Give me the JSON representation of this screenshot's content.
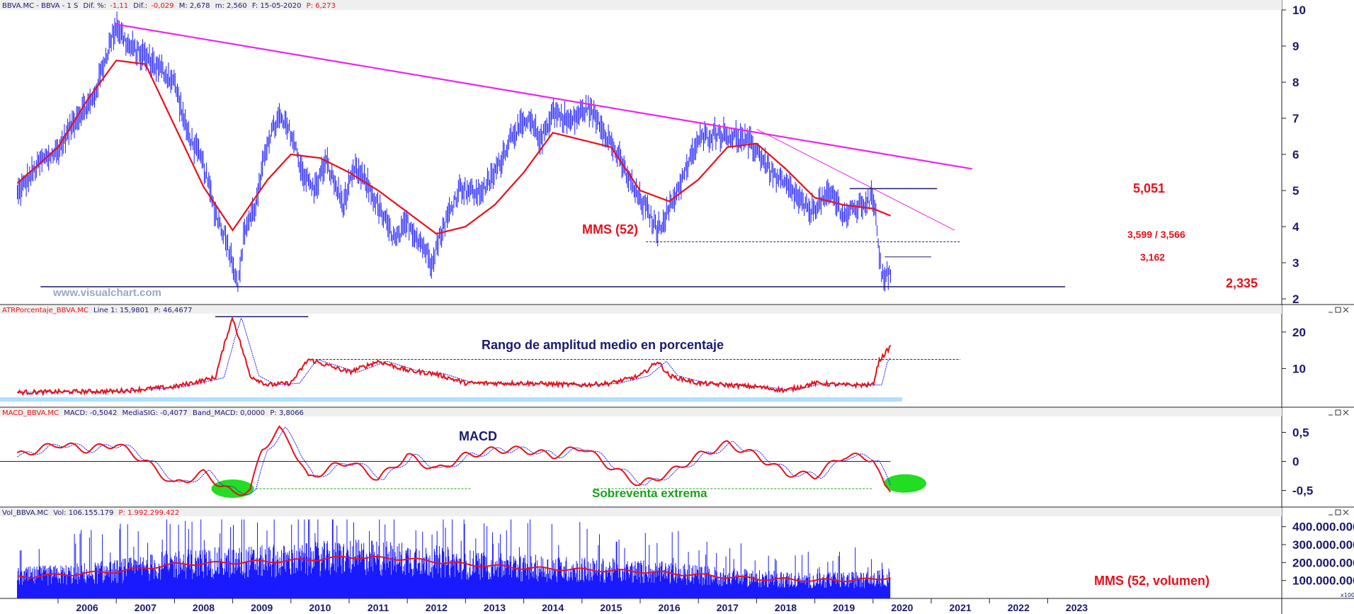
{
  "chart_data": [
    {
      "type": "line",
      "panel": "price",
      "header": {
        "symbol": "BBVA.MC - BBVA - 1 S",
        "dif_label": "Dif. %:",
        "dif_pct": "-1,11",
        "dif_abs_label": "Dif.:",
        "dif_abs": "-0,029",
        "max": "M: 2,678",
        "min": "m: 2,560",
        "date": "F: 15-05-2020",
        "price": "P: 6,273"
      },
      "ylim": [
        2,
        10
      ],
      "yticks": [
        "10",
        "9",
        "8",
        "7",
        "6",
        "5",
        "4",
        "3",
        "2"
      ],
      "series": [
        {
          "name": "MMS (52)",
          "color": "#e8101a",
          "x": [
            2005.3,
            2006.0,
            2006.5,
            2007.0,
            2007.5,
            2008.0,
            2008.5,
            2009.0,
            2009.3,
            2009.6,
            2010.0,
            2010.5,
            2011.0,
            2011.5,
            2012.0,
            2012.5,
            2013.0,
            2013.5,
            2014.0,
            2014.5,
            2015.0,
            2015.5,
            2016.0,
            2016.5,
            2017.0,
            2017.5,
            2018.0,
            2018.5,
            2019.0,
            2019.5,
            2020.0,
            2020.3
          ],
          "values": [
            5.2,
            6.2,
            7.5,
            8.6,
            8.5,
            6.8,
            5.1,
            3.9,
            4.6,
            5.3,
            6.0,
            5.9,
            5.5,
            5.0,
            4.4,
            3.8,
            4.0,
            4.6,
            5.5,
            6.6,
            6.4,
            6.2,
            5.0,
            4.7,
            5.3,
            6.2,
            6.3,
            5.6,
            4.8,
            4.6,
            4.5,
            4.3
          ]
        }
      ],
      "annotations": [
        {
          "text": "MMS (52)",
          "color": "#e8101a"
        },
        {
          "text": "5,051",
          "color": "#e8101a"
        },
        {
          "text": "3,599 / 3,566",
          "color": "#e8101a"
        },
        {
          "text": "3,162",
          "color": "#e8101a"
        },
        {
          "text": "2,335",
          "color": "#e8101a"
        }
      ],
      "levels": [
        5.051,
        3.599,
        3.162,
        2.335
      ],
      "watermark": "www.visualchart.com"
    },
    {
      "type": "line",
      "panel": "atr",
      "header": {
        "name": "ATRPorcentaje_BBVA.MC",
        "line": "Line 1: 15,9801",
        "p": "P: 46,4677"
      },
      "ylim": [
        0,
        25
      ],
      "yticks": [
        "20",
        "10"
      ],
      "series": [
        {
          "color": "#e8101a",
          "x": [
            2005.3,
            2007.0,
            2008.0,
            2008.7,
            2008.9,
            2009.0,
            2009.3,
            2009.6,
            2010.0,
            2010.3,
            2011.0,
            2011.5,
            2012.0,
            2012.5,
            2013.0,
            2014.0,
            2015.0,
            2015.5,
            2016.0,
            2016.3,
            2016.5,
            2017.0,
            2017.5,
            2018.0,
            2018.5,
            2019.0,
            2019.5,
            2020.0,
            2020.1,
            2020.2,
            2020.3
          ],
          "values": [
            3.5,
            3.8,
            5.0,
            7.5,
            19.0,
            24.0,
            8.0,
            5.5,
            6.0,
            12.5,
            9.0,
            12.0,
            9.5,
            8.5,
            6.0,
            6.0,
            5.5,
            6.0,
            8.0,
            12.0,
            8.0,
            6.0,
            5.5,
            5.0,
            4.0,
            6.0,
            5.5,
            5.5,
            12.0,
            14.0,
            16.0
          ]
        }
      ],
      "annotations": [
        {
          "text": "Rango de amplitud medio en porcentaje",
          "color": "#1a1a6e"
        }
      ]
    },
    {
      "type": "line",
      "panel": "macd",
      "header": {
        "name": "MACD_BBVA.MC",
        "macd": "MACD: -0,5042",
        "signal": "MediaSIG: -0,4077",
        "band": "Band_MACD: 0,0000",
        "p": "P: 3,8066"
      },
      "ylim": [
        -0.75,
        0.75
      ],
      "yticks": [
        "0,5",
        "0",
        "-0,5"
      ],
      "series": [
        {
          "color": "#e8101a",
          "x": [
            2005.3,
            2006.0,
            2006.5,
            2007.0,
            2007.5,
            2008.0,
            2008.5,
            2009.0,
            2009.3,
            2009.5,
            2009.8,
            2010.0,
            2010.3,
            2010.7,
            2011.0,
            2011.5,
            2012.0,
            2012.5,
            2013.0,
            2013.5,
            2014.0,
            2014.5,
            2015.0,
            2015.5,
            2016.0,
            2016.5,
            2017.0,
            2017.5,
            2018.0,
            2018.5,
            2019.0,
            2019.5,
            2020.0,
            2020.2,
            2020.3
          ],
          "values": [
            0.1,
            0.3,
            0.2,
            0.3,
            0.0,
            -0.4,
            -0.2,
            -0.55,
            -0.5,
            0.2,
            0.55,
            0.3,
            -0.3,
            -0.1,
            0.0,
            -0.3,
            0.1,
            -0.15,
            0.1,
            0.2,
            0.2,
            0.1,
            0.25,
            -0.1,
            -0.4,
            -0.2,
            0.1,
            0.3,
            0.1,
            -0.2,
            -0.25,
            0.1,
            0.05,
            -0.45,
            -0.5
          ]
        }
      ],
      "annotations": [
        {
          "text": "MACD",
          "color": "#1a1a6e"
        },
        {
          "text": "Sobreventa extrema",
          "color": "#1aa01a"
        }
      ]
    },
    {
      "type": "bar",
      "panel": "volume",
      "header": {
        "name": "Vol_BBVA.MC",
        "vol": "Vol: 106.155.179",
        "p": "P: 1.992.299.422"
      },
      "ylim": [
        0,
        450000000
      ],
      "yticks": [
        "400.000.000",
        "300.000.000",
        "200.000.000",
        "100.000.000"
      ],
      "corner": "x100",
      "series": [
        {
          "name": "MMS (52, volumen)",
          "color": "#e8101a",
          "x": [
            2005.3,
            2006.0,
            2007.0,
            2008.0,
            2009.0,
            2010.0,
            2011.0,
            2012.0,
            2013.0,
            2014.0,
            2015.0,
            2016.0,
            2017.0,
            2018.0,
            2019.0,
            2020.0,
            2020.3
          ],
          "values": [
            120000000,
            130000000,
            150000000,
            190000000,
            200000000,
            210000000,
            230000000,
            220000000,
            190000000,
            170000000,
            160000000,
            150000000,
            130000000,
            110000000,
            100000000,
            105000000,
            120000000
          ]
        }
      ],
      "annotations": [
        {
          "text": "MMS (52, volumen)",
          "color": "#e8101a"
        }
      ]
    }
  ],
  "xaxis": {
    "ticks": [
      "2006",
      "2007",
      "2008",
      "2009",
      "2010",
      "2011",
      "2012",
      "2013",
      "2014",
      "2015",
      "2016",
      "2017",
      "2018",
      "2019",
      "2020",
      "2021",
      "2022",
      "2023"
    ]
  },
  "colors": {
    "price": "#1a1aff",
    "mma": "#e8101a",
    "trend": "#ee22ee",
    "signal": "#1a1aff",
    "axis_text": "#1a1a6e",
    "band": "#aee0ff",
    "ellipse": "#22dd22"
  }
}
